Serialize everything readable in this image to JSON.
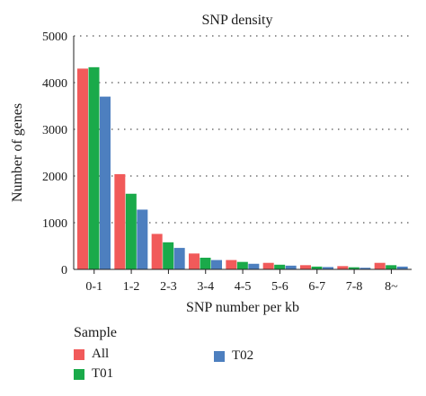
{
  "chart_data": {
    "type": "bar",
    "title": "SNP density",
    "xlabel": "SNP number per kb",
    "ylabel": "Number of genes",
    "ylim": [
      0,
      5000
    ],
    "yticks": [
      0,
      1000,
      2000,
      3000,
      4000,
      5000
    ],
    "grid": "horizontal dotted",
    "categories": [
      "0-1",
      "1-2",
      "2-3",
      "3-4",
      "4-5",
      "5-6",
      "6-7",
      "7-8",
      "8~"
    ],
    "series": [
      {
        "name": "All",
        "color": "#f15a5a",
        "values": [
          4300,
          2040,
          760,
          340,
          200,
          140,
          90,
          70,
          140
        ]
      },
      {
        "name": "T01",
        "color": "#1aaa4a",
        "values": [
          4330,
          1620,
          580,
          250,
          160,
          100,
          60,
          45,
          90
        ]
      },
      {
        "name": "T02",
        "color": "#4d7fbf",
        "values": [
          3700,
          1280,
          460,
          200,
          120,
          80,
          50,
          35,
          60
        ]
      }
    ],
    "legend": {
      "title": "Sample",
      "placement": "bottom"
    }
  }
}
